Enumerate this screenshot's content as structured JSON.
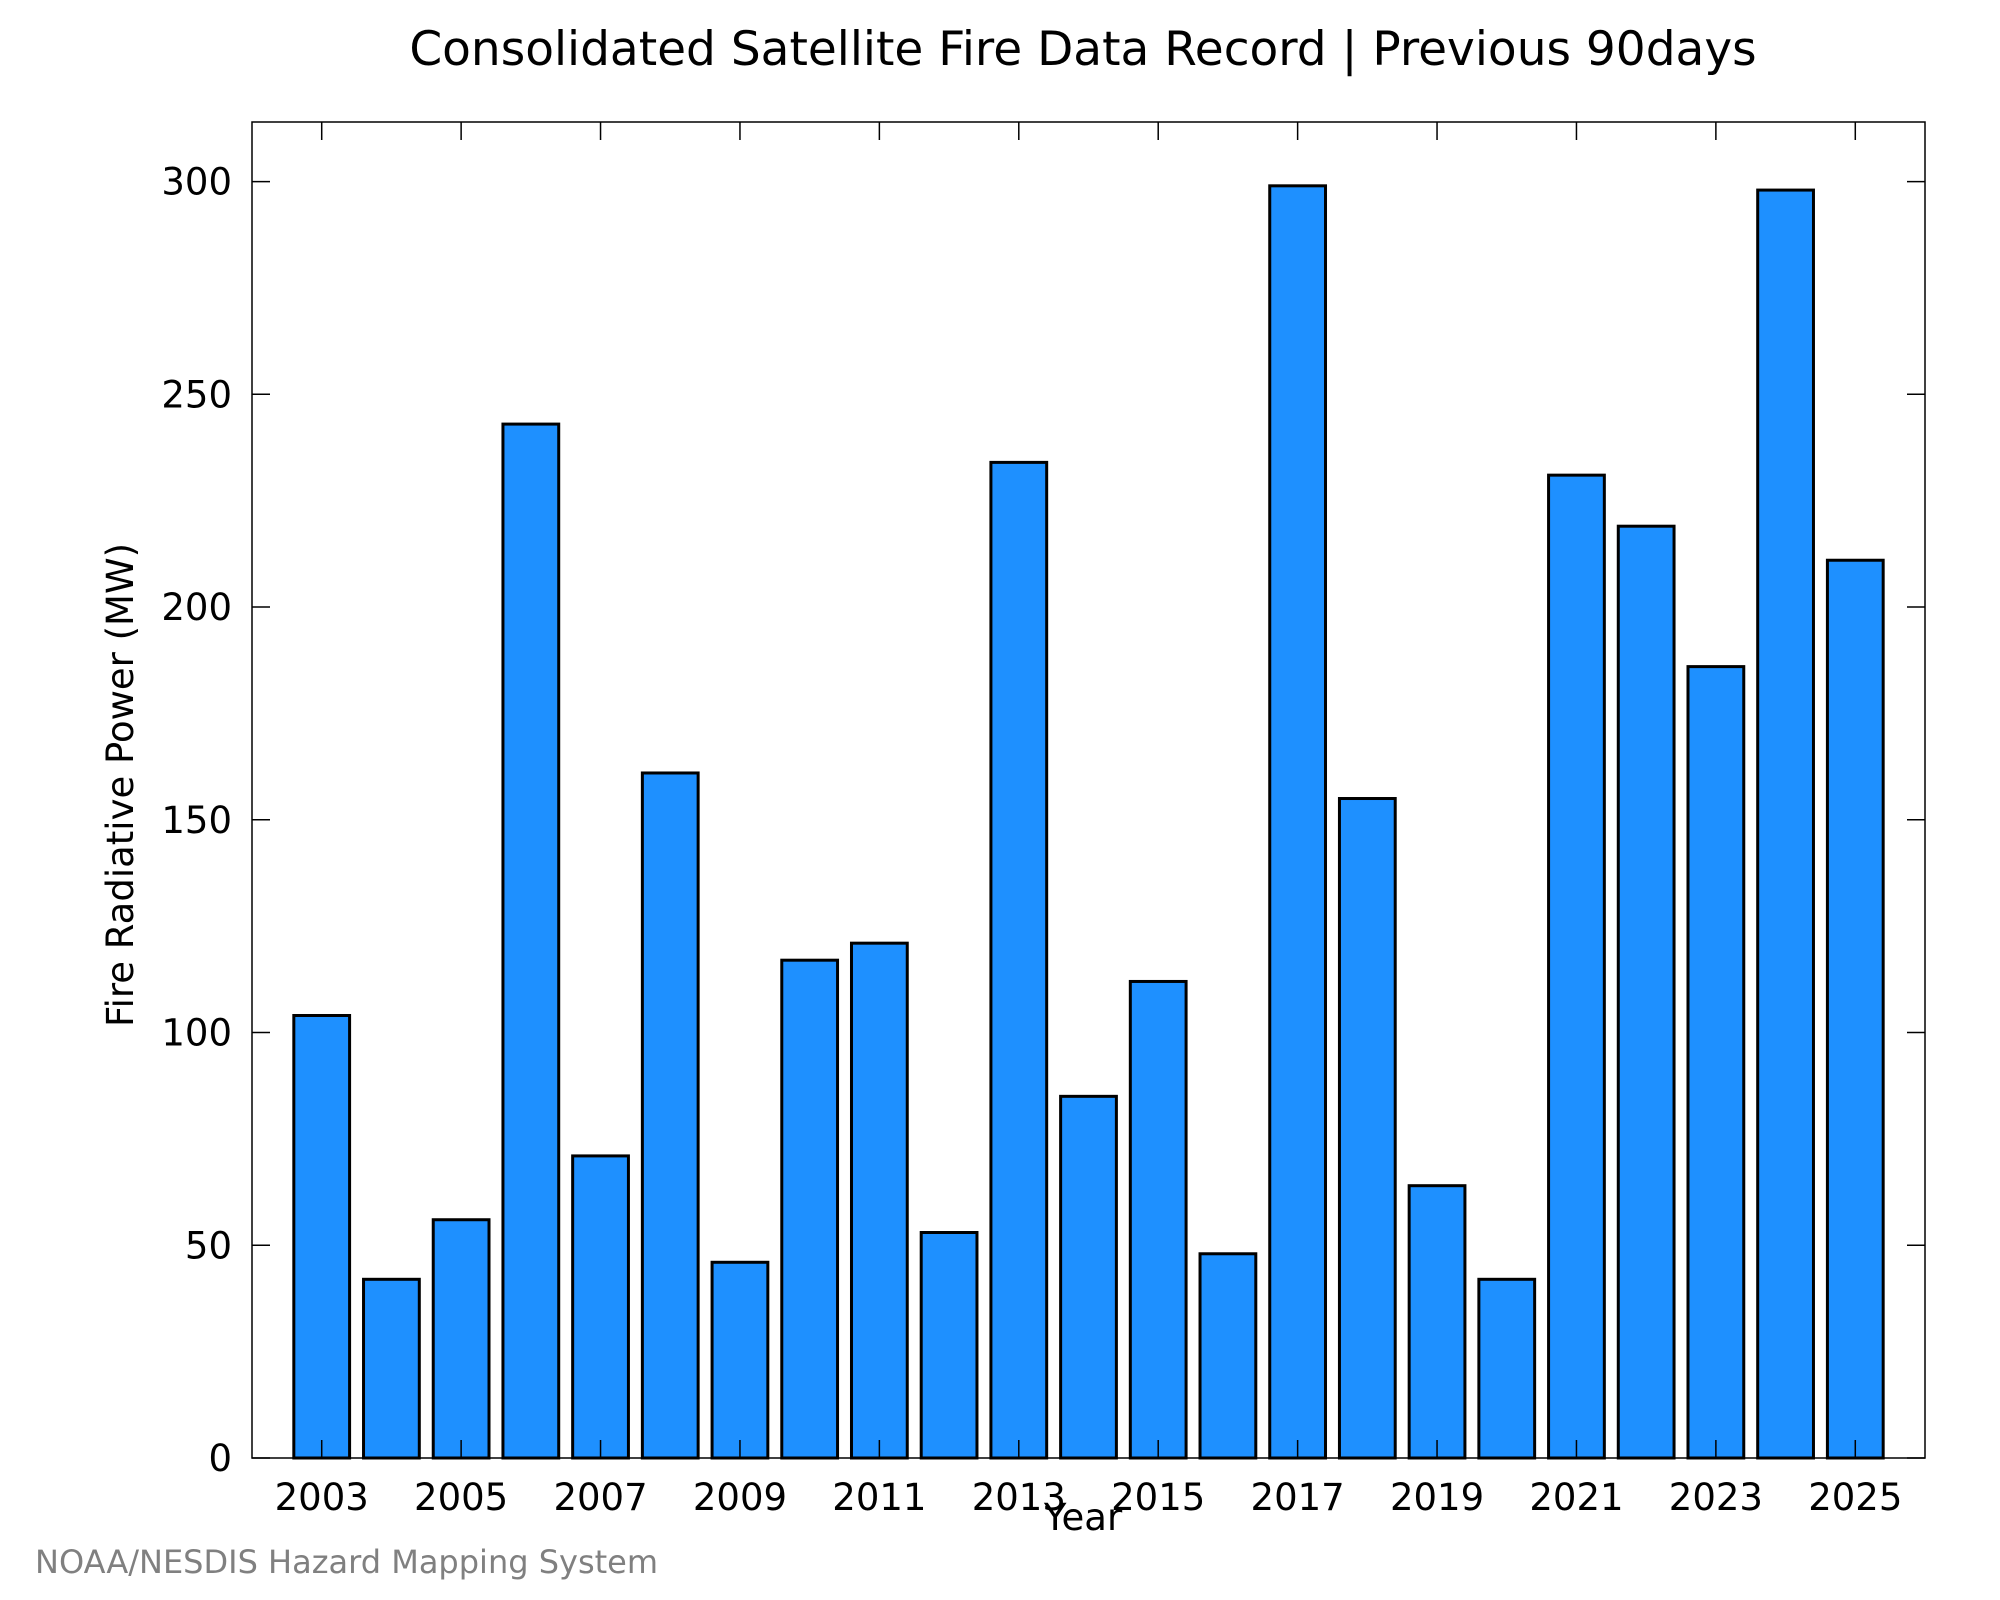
{
  "chart_data": {
    "type": "bar",
    "title": "Consolidated Satellite Fire Data Record | Previous 90days",
    "xlabel": "Year",
    "ylabel": "Fire Radiative Power (MW)",
    "categories": [
      "2003",
      "2004",
      "2005",
      "2006",
      "2007",
      "2008",
      "2009",
      "2010",
      "2011",
      "2012",
      "2013",
      "2014",
      "2015",
      "2016",
      "2017",
      "2018",
      "2019",
      "2020",
      "2021",
      "2022",
      "2023",
      "2024",
      "2025"
    ],
    "values": [
      104,
      42,
      56,
      243,
      71,
      161,
      46,
      117,
      121,
      53,
      234,
      85,
      112,
      48,
      299,
      155,
      64,
      42,
      231,
      219,
      186,
      298,
      211
    ],
    "x_tick_labels": [
      "2003",
      "2005",
      "2007",
      "2009",
      "2011",
      "2013",
      "2015",
      "2017",
      "2019",
      "2021",
      "2023",
      "2025"
    ],
    "y_ticks": [
      0,
      50,
      100,
      150,
      200,
      250,
      300
    ],
    "ylim": [
      0,
      314
    ],
    "grid": false,
    "legend": "none",
    "bar_color": "#1e90ff",
    "bar_edge_color": "#000000"
  },
  "credit": "NOAA/NESDIS Hazard Mapping System"
}
